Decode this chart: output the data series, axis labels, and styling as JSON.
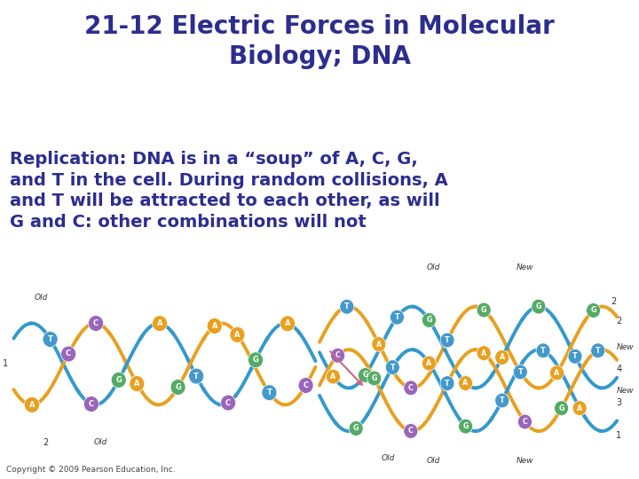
{
  "title_line1": "21-12 Electric Forces in Molecular",
  "title_line2": "Biology; DNA",
  "body_text": "Replication: DNA is in a “soup” of A, C, G,\nand T in the cell. During random collisions, A\nand T will be attracted to each other, as will\nG and C: other combinations will not",
  "copyright": "Copyright © 2009 Pearson Education, Inc.",
  "title_color": "#2d2d8e",
  "body_color": "#2d2d8e",
  "copyright_color": "#444444",
  "bg_color": "#ffffff",
  "title_fontsize": 20,
  "body_fontsize": 14,
  "copyright_fontsize": 6.5,
  "helix_blue": "#3399cc",
  "helix_gold": "#e8a020",
  "node_A": "#e8a020",
  "node_T": "#4499cc",
  "node_G": "#55aa66",
  "node_C": "#9966bb",
  "node_text_color": "#ffffff",
  "label_color": "#333333"
}
